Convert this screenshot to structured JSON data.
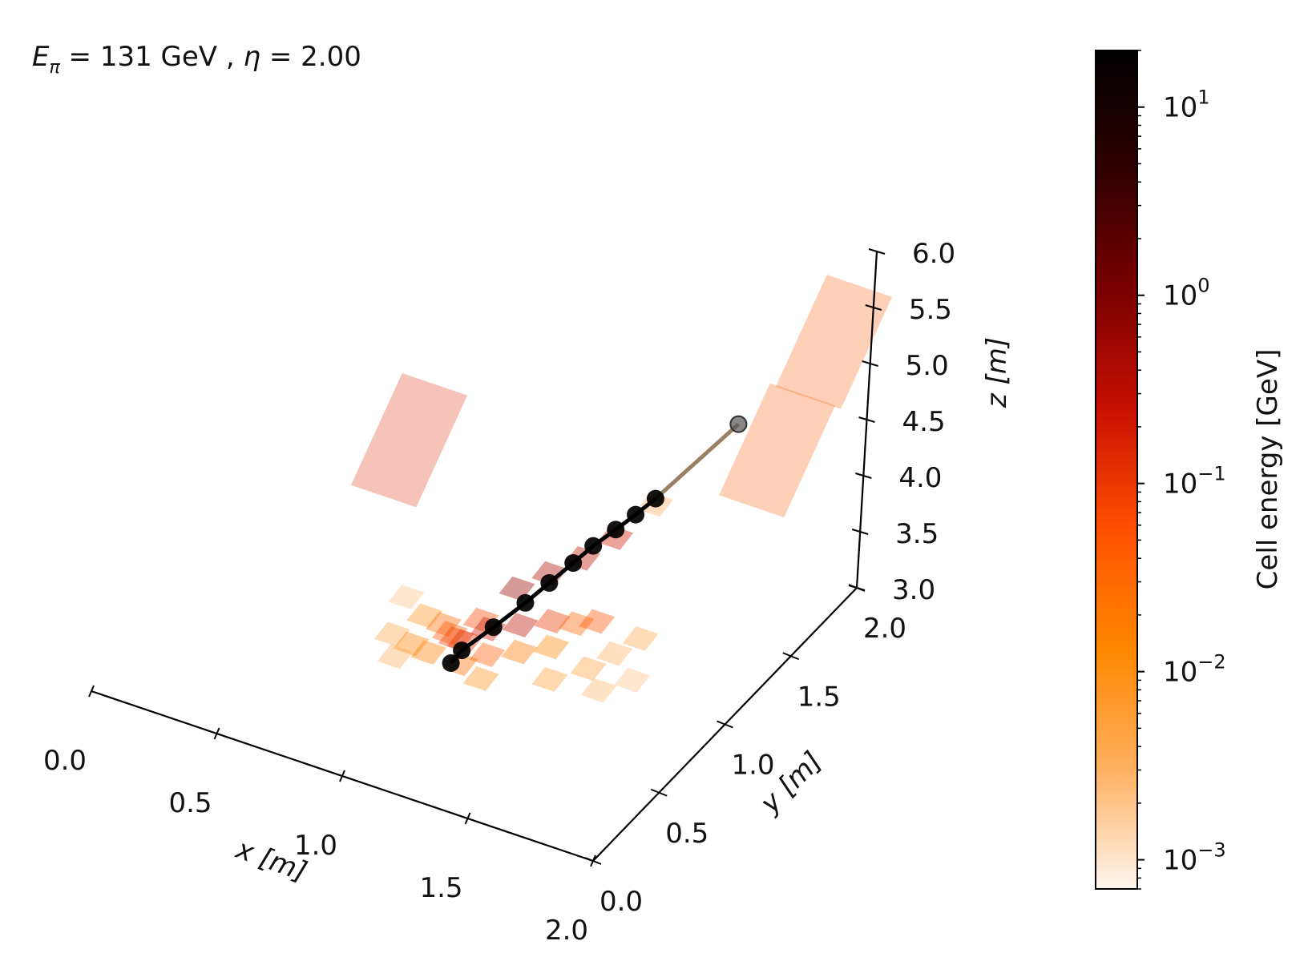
{
  "chart_data": {
    "type": "scatter3d",
    "title_parts": {
      "e_symbol": "E",
      "e_sub": "π",
      "eq1": " = 131 GeV , ",
      "eta_symbol": "η",
      "eq2": " = 2.00"
    },
    "axes": {
      "x": {
        "label": "x [m]",
        "range": [
          0.0,
          2.0
        ],
        "ticks": [
          "0.0",
          "0.5",
          "1.0",
          "1.5",
          "2.0"
        ]
      },
      "y": {
        "label": "y [m]",
        "range": [
          0.0,
          2.0
        ],
        "ticks": [
          "0.0",
          "0.5",
          "1.0",
          "1.5",
          "2.0"
        ]
      },
      "z": {
        "label": "z [m]",
        "range": [
          3.0,
          6.0
        ],
        "ticks": [
          "3.0",
          "3.5",
          "4.0",
          "4.5",
          "5.0",
          "5.5",
          "6.0"
        ]
      }
    },
    "colorbar": {
      "label": "Cell energy [GeV]",
      "scale": "log",
      "range": [
        0.0007,
        20
      ],
      "ticks": [
        {
          "base": "10",
          "exp": "1",
          "value": 10
        },
        {
          "base": "10",
          "exp": "0",
          "value": 1
        },
        {
          "base": "10",
          "exp": "−1",
          "value": 0.1
        },
        {
          "base": "10",
          "exp": "−2",
          "value": 0.01
        },
        {
          "base": "10",
          "exp": "−3",
          "value": 0.001
        }
      ],
      "colormap": [
        "#fff5ee",
        "#ffb060",
        "#ff8800",
        "#ff5000",
        "#c81000",
        "#7a0000",
        "#300000",
        "#000000"
      ]
    },
    "track": {
      "color": "#000000",
      "end_marker_color": "#555555",
      "points": [
        {
          "x": 1.06,
          "y": 0.7,
          "z": 3.2
        },
        {
          "x": 1.08,
          "y": 0.74,
          "z": 3.28
        },
        {
          "x": 1.16,
          "y": 0.82,
          "z": 3.45
        },
        {
          "x": 1.24,
          "y": 0.9,
          "z": 3.63
        },
        {
          "x": 1.3,
          "y": 0.96,
          "z": 3.78
        },
        {
          "x": 1.36,
          "y": 1.02,
          "z": 3.93
        },
        {
          "x": 1.41,
          "y": 1.07,
          "z": 4.06
        },
        {
          "x": 1.47,
          "y": 1.12,
          "z": 4.19
        },
        {
          "x": 1.52,
          "y": 1.17,
          "z": 4.3
        },
        {
          "x": 1.57,
          "y": 1.22,
          "z": 4.42
        }
      ],
      "end_point": {
        "x": 1.78,
        "y": 1.42,
        "z": 5.0
      }
    },
    "cells": [
      {
        "x": 1.05,
        "y": 0.75,
        "z": 3.35,
        "energy": 0.08
      },
      {
        "x": 1.0,
        "y": 0.8,
        "z": 3.3,
        "energy": 0.05
      },
      {
        "x": 1.1,
        "y": 0.72,
        "z": 3.4,
        "energy": 0.12
      },
      {
        "x": 0.95,
        "y": 0.85,
        "z": 3.28,
        "energy": 0.03
      },
      {
        "x": 1.15,
        "y": 0.8,
        "z": 3.45,
        "energy": 0.2
      },
      {
        "x": 1.2,
        "y": 0.7,
        "z": 3.38,
        "energy": 0.04
      },
      {
        "x": 0.9,
        "y": 0.7,
        "z": 3.25,
        "energy": 0.015
      },
      {
        "x": 1.25,
        "y": 0.85,
        "z": 3.5,
        "energy": 0.3
      },
      {
        "x": 1.3,
        "y": 0.75,
        "z": 3.42,
        "energy": 0.02
      },
      {
        "x": 0.85,
        "y": 0.9,
        "z": 3.22,
        "energy": 0.008
      },
      {
        "x": 1.35,
        "y": 0.9,
        "z": 3.55,
        "energy": 0.1
      },
      {
        "x": 1.4,
        "y": 0.8,
        "z": 3.48,
        "energy": 0.012
      },
      {
        "x": 1.45,
        "y": 0.7,
        "z": 3.35,
        "energy": 0.006
      },
      {
        "x": 0.8,
        "y": 0.75,
        "z": 3.2,
        "energy": 0.004
      },
      {
        "x": 1.5,
        "y": 0.95,
        "z": 3.6,
        "energy": 0.05
      },
      {
        "x": 1.55,
        "y": 0.8,
        "z": 3.4,
        "energy": 0.005
      },
      {
        "x": 1.6,
        "y": 0.9,
        "z": 3.45,
        "energy": 0.003
      },
      {
        "x": 0.75,
        "y": 0.95,
        "z": 3.25,
        "energy": 0.002
      },
      {
        "x": 1.65,
        "y": 1.0,
        "z": 3.5,
        "energy": 0.004
      },
      {
        "x": 1.7,
        "y": 0.85,
        "z": 3.35,
        "energy": 0.002
      },
      {
        "x": 1.18,
        "y": 0.95,
        "z": 3.65,
        "energy": 0.6
      },
      {
        "x": 1.28,
        "y": 1.0,
        "z": 3.8,
        "energy": 0.4
      },
      {
        "x": 1.38,
        "y": 1.05,
        "z": 3.95,
        "energy": 0.3
      },
      {
        "x": 1.48,
        "y": 1.1,
        "z": 4.15,
        "energy": 0.2
      },
      {
        "x": 1.58,
        "y": 1.2,
        "z": 4.4,
        "energy": 0.003
      },
      {
        "x": 0.7,
        "y": 1.0,
        "z": 4.55,
        "energy": 0.15
      },
      {
        "x": 1.85,
        "y": 1.6,
        "z": 4.6,
        "energy": 0.05
      },
      {
        "x": 1.95,
        "y": 1.8,
        "z": 5.4,
        "energy": 0.05
      },
      {
        "x": 1.12,
        "y": 0.65,
        "z": 3.3,
        "energy": 0.025
      },
      {
        "x": 0.98,
        "y": 0.68,
        "z": 3.26,
        "energy": 0.018
      },
      {
        "x": 1.22,
        "y": 0.62,
        "z": 3.28,
        "energy": 0.009
      },
      {
        "x": 1.08,
        "y": 0.88,
        "z": 3.38,
        "energy": 0.07
      },
      {
        "x": 1.42,
        "y": 0.95,
        "z": 3.52,
        "energy": 0.035
      },
      {
        "x": 1.62,
        "y": 0.75,
        "z": 3.32,
        "energy": 0.0025
      },
      {
        "x": 0.88,
        "y": 0.62,
        "z": 3.22,
        "energy": 0.003
      }
    ]
  }
}
